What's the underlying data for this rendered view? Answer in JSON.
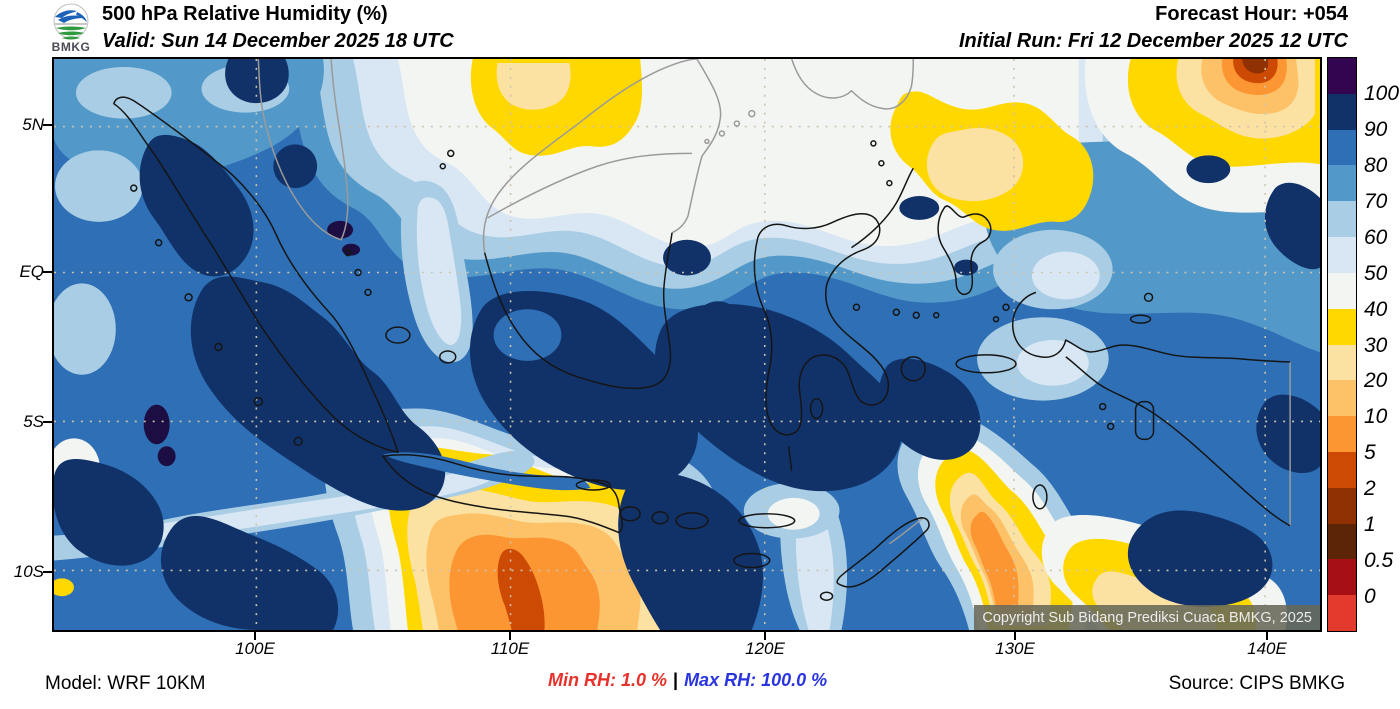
{
  "header": {
    "logo": "BMKG",
    "title": "500 hPa Relative Humidity (%)",
    "valid": "Valid: Sun 14 December 2025 18 UTC",
    "forecast_hour": "Forecast Hour: +054",
    "initial_run": "Initial Run: Fri 12 December 2025 12 UTC"
  },
  "map": {
    "lat_ticks": [
      "5N",
      "EQ",
      "5S",
      "10S"
    ],
    "lon_ticks": [
      "100E",
      "110E",
      "120E",
      "130E",
      "140E"
    ],
    "copyright": "Copyright Sub Bidang Prediksi Cuaca BMKG, 2025"
  },
  "colorbar": {
    "labels": [
      "100",
      "90",
      "80",
      "70",
      "60",
      "50",
      "40",
      "30",
      "20",
      "10",
      "5",
      "2",
      "1",
      "0.5",
      "0"
    ],
    "band_colors_top_to_bottom": [
      "#330551",
      "#113269",
      "#2e6fb5",
      "#5299c9",
      "#a9cde4",
      "#d8e7f3",
      "#f3f5f2",
      "#ffd800",
      "#fbe2a2",
      "#fdc167",
      "#fc9632",
      "#cc4a03",
      "#8f3103",
      "#5c2508",
      "#a50f15",
      "#e23b2e"
    ]
  },
  "footer": {
    "model": "Model: WRF 10KM",
    "min_rh": "Min RH:  1.0 %",
    "separator": "|",
    "max_rh": "Max RH: 100.0 %",
    "source": "Source: CIPS BMKG",
    "min_color": "#e8312b",
    "max_color": "#2a35e0"
  }
}
